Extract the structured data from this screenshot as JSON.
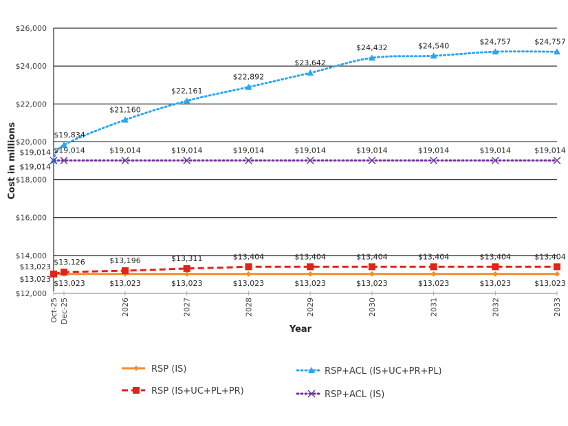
{
  "chart_data": {
    "type": "line",
    "title": "",
    "xlabel": "Year",
    "ylabel": "Cost in millions",
    "ylim": [
      12000,
      26000
    ],
    "yticks": [
      "$12,000",
      "$14,000",
      "$16,000",
      "$18,000",
      "$20,000",
      "$22,000",
      "$24,000",
      "$26,000"
    ],
    "categories": [
      "Oct-25",
      "Dec-25",
      "2026",
      "2027",
      "2028",
      "2029",
      "2030",
      "2031",
      "2032",
      "2033"
    ],
    "grid": true,
    "legend_position": "bottom",
    "series": [
      {
        "name": "RSP (IS)",
        "color": "#f28e2b",
        "style": "solid",
        "marker": "diamond",
        "label_pos": "below",
        "values": [
          13023,
          13023,
          13023,
          13023,
          13023,
          13023,
          13023,
          13023,
          13023,
          13023
        ]
      },
      {
        "name": "RSP (IS+UC+PL+PR)",
        "color": "#e2231a",
        "style": "dashed",
        "marker": "square",
        "label_pos": "above",
        "values": [
          13023,
          13126,
          13196,
          13311,
          13404,
          13404,
          13404,
          13404,
          13404,
          13404
        ]
      },
      {
        "name": "RSP+ACL (IS+UC+PR+PL)",
        "color": "#2aa7f0",
        "style": "dotted",
        "marker": "triangle",
        "label_pos": "above",
        "values": [
          19014,
          19834,
          21160,
          22161,
          22892,
          23642,
          24432,
          24540,
          24757,
          24757
        ]
      },
      {
        "name": "RSP+ACL (IS)",
        "color": "#7030a0",
        "style": "dotted",
        "marker": "x",
        "label_pos": "above",
        "values": [
          19014,
          19014,
          19014,
          19014,
          19014,
          19014,
          19014,
          19014,
          19014,
          19014
        ]
      }
    ]
  }
}
